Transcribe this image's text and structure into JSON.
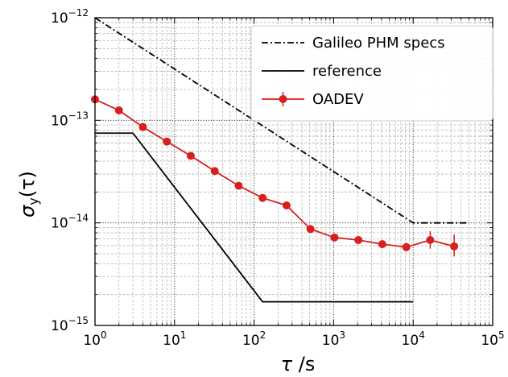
{
  "chart_data": {
    "type": "line",
    "xscale": "log",
    "yscale": "log",
    "xlim": [
      1,
      100000
    ],
    "ylim": [
      1e-15,
      1e-12
    ],
    "xlabel_symbol": "τ",
    "xlabel_unit": " /s",
    "ylabel_symbol": "σ",
    "ylabel_sub": "y",
    "ylabel_arg": "(τ)",
    "x_ticks": [
      {
        "value": 1,
        "base": "10",
        "exp": "0"
      },
      {
        "value": 10,
        "base": "10",
        "exp": "1"
      },
      {
        "value": 100,
        "base": "10",
        "exp": "2"
      },
      {
        "value": 1000,
        "base": "10",
        "exp": "3"
      },
      {
        "value": 10000,
        "base": "10",
        "exp": "4"
      },
      {
        "value": 100000,
        "base": "10",
        "exp": "5"
      }
    ],
    "y_ticks": [
      {
        "value": 1e-15,
        "base": "10",
        "exp": "−15"
      },
      {
        "value": 1e-14,
        "base": "10",
        "exp": "−14"
      },
      {
        "value": 1e-13,
        "base": "10",
        "exp": "−13"
      },
      {
        "value": 1e-12,
        "base": "10",
        "exp": "−12"
      }
    ],
    "grid": true,
    "legend_position": "top-right",
    "series": [
      {
        "name": "Galileo PHM specs",
        "style": "dashdot",
        "color": "#000000",
        "x": [
          1,
          10000,
          50000
        ],
        "y": [
          1e-12,
          1e-14,
          1e-14
        ]
      },
      {
        "name": "reference",
        "style": "solid",
        "color": "#000000",
        "x": [
          1,
          3,
          128,
          10000
        ],
        "y": [
          7.5e-14,
          7.5e-14,
          1.7e-15,
          1.7e-15
        ]
      },
      {
        "name": "OADEV",
        "style": "solid-markers",
        "color": "#d62020",
        "x": [
          1,
          2,
          4,
          8,
          16,
          32,
          64,
          128,
          256,
          512,
          1024,
          2048,
          4096,
          8192,
          16384,
          32768
        ],
        "y": [
          1.6e-13,
          1.25e-13,
          8.6e-14,
          6.2e-14,
          4.5e-14,
          3.2e-14,
          2.3e-14,
          1.75e-14,
          1.48e-14,
          8.7e-15,
          7.2e-15,
          6.8e-15,
          6.2e-15,
          5.8e-15,
          6.8e-15,
          5.9e-15
        ],
        "err_low": [
          1.6e-13,
          1.25e-13,
          8.6e-14,
          6.2e-14,
          4.5e-14,
          3.2e-14,
          2.3e-14,
          1.75e-14,
          1.48e-14,
          8.5e-15,
          7e-15,
          6.5e-15,
          5.9e-15,
          5.3e-15,
          5.6e-15,
          4.7e-15
        ],
        "err_high": [
          1.6e-13,
          1.25e-13,
          8.6e-14,
          6.2e-14,
          4.5e-14,
          3.2e-14,
          2.3e-14,
          1.75e-14,
          1.48e-14,
          8.9e-15,
          7.4e-15,
          7.1e-15,
          6.6e-15,
          6.4e-15,
          8.3e-15,
          7.7e-15
        ]
      }
    ]
  }
}
